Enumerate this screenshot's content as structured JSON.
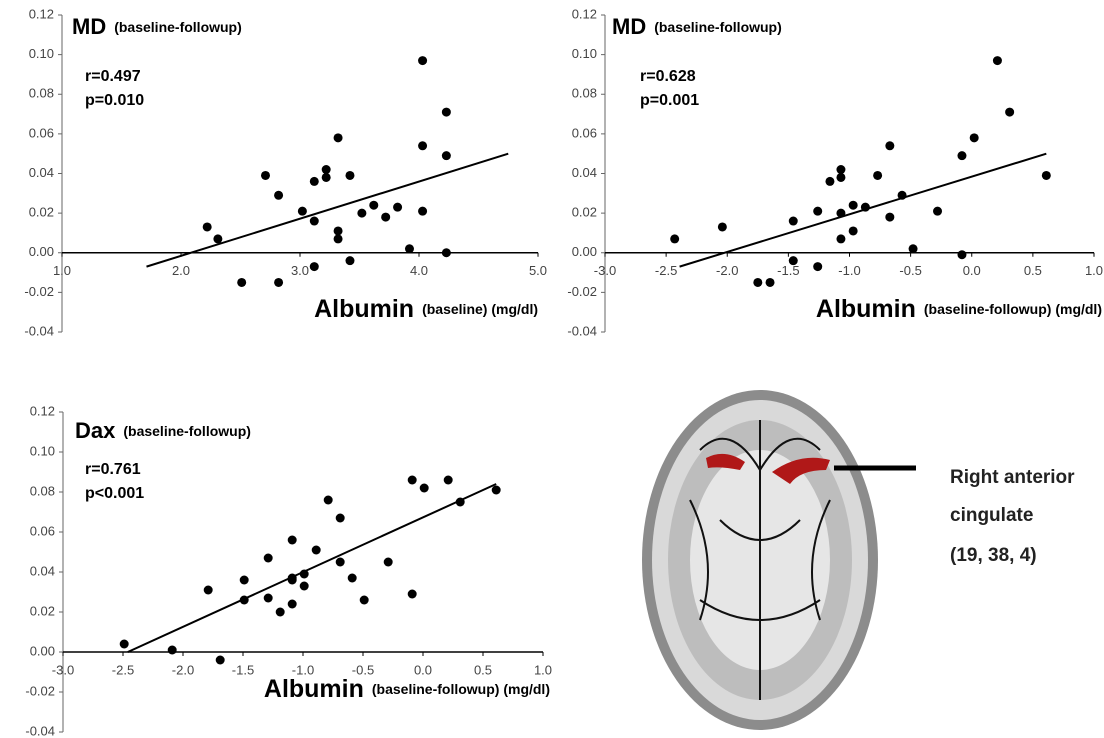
{
  "chart_data": [
    {
      "type": "scatter",
      "title": "MD",
      "subtitle": "(baseline-followup)",
      "xlabel": "Albumin",
      "xlabel_note": "(baseline) (mg/dl)",
      "stats": [
        "r=0.497",
        "p=0.010"
      ],
      "color": "#000000",
      "x": [
        2.22,
        2.31,
        2.51,
        2.71,
        2.82,
        2.82,
        3.02,
        3.12,
        3.12,
        3.12,
        3.22,
        3.22,
        3.32,
        3.32,
        3.32,
        3.42,
        3.42,
        3.52,
        3.62,
        3.72,
        3.82,
        3.92,
        4.03,
        4.03,
        4.03,
        4.23,
        4.23,
        4.23
      ],
      "values": [
        0.013,
        0.007,
        -0.015,
        0.039,
        0.029,
        -0.015,
        0.021,
        0.016,
        0.036,
        -0.007,
        0.042,
        0.038,
        0.058,
        0.011,
        0.007,
        0.039,
        -0.004,
        0.02,
        0.024,
        0.018,
        0.023,
        0.002,
        0.097,
        0.054,
        0.021,
        0.071,
        0.049,
        0.0
      ],
      "fit_line": {
        "x": [
          1.71,
          4.75
        ],
        "y": [
          -0.007,
          0.05
        ]
      },
      "xlim": [
        1.0,
        5.0
      ],
      "ylim": [
        -0.04,
        0.12
      ],
      "xticks": [
        {
          "value": 1,
          "label": "1.0"
        },
        {
          "value": 2,
          "label": "2.0"
        },
        {
          "value": 3,
          "label": "3.0"
        },
        {
          "value": 4,
          "label": "4.0"
        },
        {
          "value": 5,
          "label": "5.0"
        }
      ],
      "yticks": [
        -0.04,
        -0.02,
        {
          "value": 0,
          "label": "0.00"
        },
        0.02,
        0.04,
        0.06,
        0.08,
        {
          "value": 0.1,
          "label": "0.10"
        },
        0.12
      ]
    },
    {
      "type": "scatter",
      "title": "MD",
      "subtitle": "(baseline-followup)",
      "xlabel": "Albumin",
      "xlabel_note": "(baseline-followup) (mg/dl)",
      "stats": [
        "r=0.628",
        "p=0.001"
      ],
      "color": "#000000",
      "x": [
        -2.43,
        -2.04,
        -1.75,
        -1.65,
        -1.46,
        -1.46,
        -1.26,
        -1.26,
        -1.16,
        -1.07,
        -1.07,
        -1.07,
        -1.07,
        -0.97,
        -0.97,
        -0.87,
        -0.77,
        -0.67,
        -0.67,
        -0.57,
        -0.48,
        -0.28,
        -0.08,
        -0.08,
        0.02,
        0.21,
        0.31,
        0.61
      ],
      "values": [
        0.007,
        0.013,
        -0.015,
        -0.015,
        0.016,
        -0.004,
        0.021,
        -0.007,
        0.036,
        0.042,
        0.038,
        0.02,
        0.007,
        0.024,
        0.011,
        0.023,
        0.039,
        0.054,
        0.018,
        0.029,
        0.002,
        0.021,
        0.049,
        -0.001,
        0.058,
        0.097,
        0.071,
        0.039
      ],
      "fit_line": {
        "x": [
          -2.39,
          0.61
        ],
        "y": [
          -0.007,
          0.05
        ]
      },
      "xlim": [
        -3.0,
        1.0
      ],
      "ylim": [
        -0.04,
        0.12
      ],
      "xticks": [
        {
          "value": -3,
          "label": "-3.0"
        },
        -2.5,
        {
          "value": -2,
          "label": "-2.0"
        },
        -1.5,
        {
          "value": -1,
          "label": "-1.0"
        },
        -0.5,
        {
          "value": 0,
          "label": "0.0"
        },
        0.5,
        {
          "value": 1,
          "label": "1.0"
        }
      ],
      "yticks": [
        -0.04,
        -0.02,
        {
          "value": 0,
          "label": "0.00"
        },
        0.02,
        0.04,
        0.06,
        0.08,
        {
          "value": 0.1,
          "label": "0.10"
        },
        0.12
      ]
    },
    {
      "type": "scatter",
      "title": "Dax",
      "subtitle": "(baseline-followup)",
      "xlabel": "Albumin",
      "xlabel_note": "(baseline-followup) (mg/dl)",
      "stats": [
        "r=0.761",
        "p<0.001"
      ],
      "color": "#000000",
      "x": [
        -2.49,
        -2.09,
        -1.69,
        -1.79,
        -1.49,
        -1.49,
        -1.29,
        -1.29,
        -1.19,
        -1.09,
        -1.09,
        -1.09,
        -1.09,
        -0.99,
        -0.99,
        -0.89,
        -0.79,
        -0.69,
        -0.69,
        -0.59,
        -0.49,
        -0.29,
        -0.09,
        -0.09,
        0.01,
        0.21,
        0.31,
        0.61
      ],
      "values": [
        0.004,
        0.001,
        -0.004,
        0.031,
        0.036,
        0.026,
        0.047,
        0.027,
        0.02,
        0.056,
        0.037,
        0.036,
        0.024,
        0.039,
        0.033,
        0.051,
        0.076,
        0.067,
        0.045,
        0.037,
        0.026,
        0.045,
        0.086,
        0.029,
        0.082,
        0.086,
        0.075,
        0.081
      ],
      "fit_line": {
        "x": [
          -2.46,
          0.61
        ],
        "y": [
          0.0,
          0.084
        ]
      },
      "xlim": [
        -3.0,
        1.0
      ],
      "ylim": [
        -0.04,
        0.12
      ],
      "xticks": [
        {
          "value": -3,
          "label": "-3.0"
        },
        -2.5,
        {
          "value": -2,
          "label": "-2.0"
        },
        -1.5,
        {
          "value": -1,
          "label": "-1.0"
        },
        -0.5,
        {
          "value": 0,
          "label": "0.0"
        },
        0.5,
        {
          "value": 1,
          "label": "1.0"
        }
      ],
      "yticks": [
        -0.04,
        -0.02,
        {
          "value": 0,
          "label": "0.00"
        },
        0.02,
        0.04,
        0.06,
        0.08,
        {
          "value": 0.1,
          "label": "0.10"
        },
        0.12
      ]
    }
  ],
  "brain_panel": {
    "label_lines": [
      "Right anterior",
      "cingulate",
      "(19, 38, 4)"
    ]
  }
}
